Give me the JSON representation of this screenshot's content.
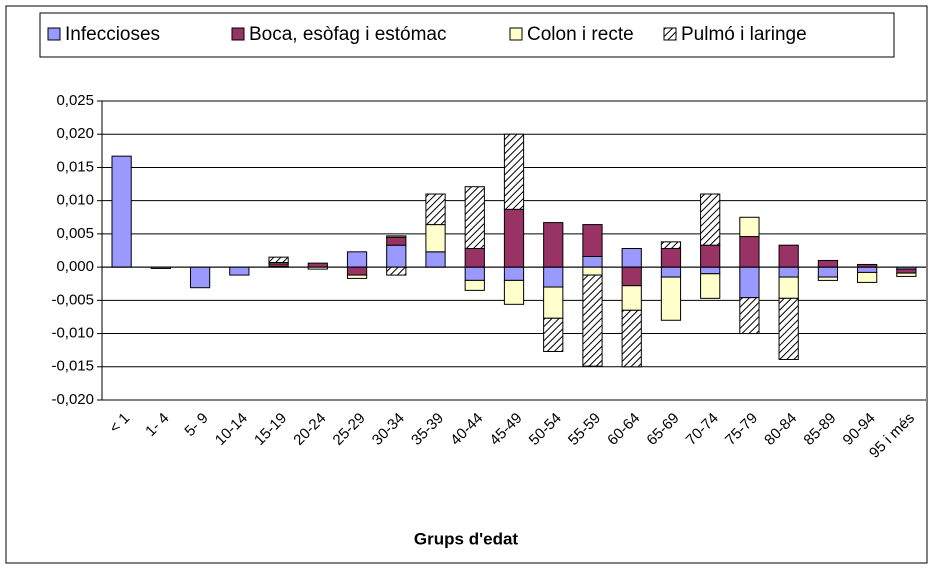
{
  "chart_data": {
    "type": "bar",
    "stacked": true,
    "x_label": "Grups d'edat",
    "categories": [
      "< 1",
      "1- 4",
      "5- 9",
      "10-14",
      "15-19",
      "20-24",
      "25-29",
      "30-34",
      "35-39",
      "40-44",
      "45-49",
      "50-54",
      "55-59",
      "60-64",
      "65-69",
      "70-74",
      "75-79",
      "80-84",
      "85-89",
      "90-94",
      "95 i més"
    ],
    "series": [
      {
        "name": "Infeccioses",
        "color": "#9999ff",
        "values": [
          0.0167,
          -0.0002,
          -0.0031,
          -0.0012,
          0.0001,
          0,
          0.0023,
          0.0033,
          0.0023,
          -0.002,
          -0.002,
          -0.003,
          0.0016,
          0.0028,
          -0.0015,
          -0.001,
          -0.0046,
          -0.0015,
          -0.0015,
          -0.0008,
          -0.0003
        ]
      },
      {
        "name": "Boca, esòfag i estómac",
        "color": "#993366",
        "values": [
          0,
          0,
          0,
          0,
          0.0004,
          0.0006,
          -0.0012,
          0.0012,
          0,
          0.0028,
          0.0087,
          0.0067,
          0.0048,
          -0.0028,
          0.0028,
          0.0033,
          0.0046,
          0.0033,
          0.001,
          0.0004,
          -0.0006
        ]
      },
      {
        "name": "Colon i recte",
        "color": "#ffffcc",
        "values": [
          0,
          0,
          0,
          0,
          0.0002,
          -0.0003,
          -0.0005,
          0.0002,
          0.0041,
          -0.0015,
          -0.0036,
          -0.0047,
          -0.0012,
          -0.0037,
          -0.0065,
          -0.0037,
          0.0029,
          -0.0032,
          -0.0005,
          -0.0015,
          -0.0005
        ]
      },
      {
        "name": "Pulmó i laringe",
        "color": "#c0c0c0",
        "pattern": "diagonal",
        "values": [
          0,
          0,
          0,
          0,
          0.0008,
          0,
          0,
          -0.0012,
          0.0046,
          0.0093,
          0.0113,
          -0.005,
          -0.0137,
          -0.0085,
          0.001,
          0.0077,
          -0.0054,
          -0.0092,
          0,
          0,
          0
        ]
      }
    ],
    "ylim": [
      -0.02,
      0.025
    ],
    "yticks": [
      {
        "value": -0.02,
        "label": "-0,020"
      },
      {
        "value": -0.015,
        "label": "-0,015"
      },
      {
        "value": -0.01,
        "label": "-0,010"
      },
      {
        "value": -0.005,
        "label": "-0,005"
      },
      {
        "value": 0,
        "label": "0,000"
      },
      {
        "value": 0.005,
        "label": "0,005"
      },
      {
        "value": 0.01,
        "label": "0,010"
      },
      {
        "value": 0.015,
        "label": "0,015"
      },
      {
        "value": 0.02,
        "label": "0,020"
      },
      {
        "value": 0.025,
        "label": "0,025"
      }
    ],
    "grid": true,
    "legend": "top"
  }
}
